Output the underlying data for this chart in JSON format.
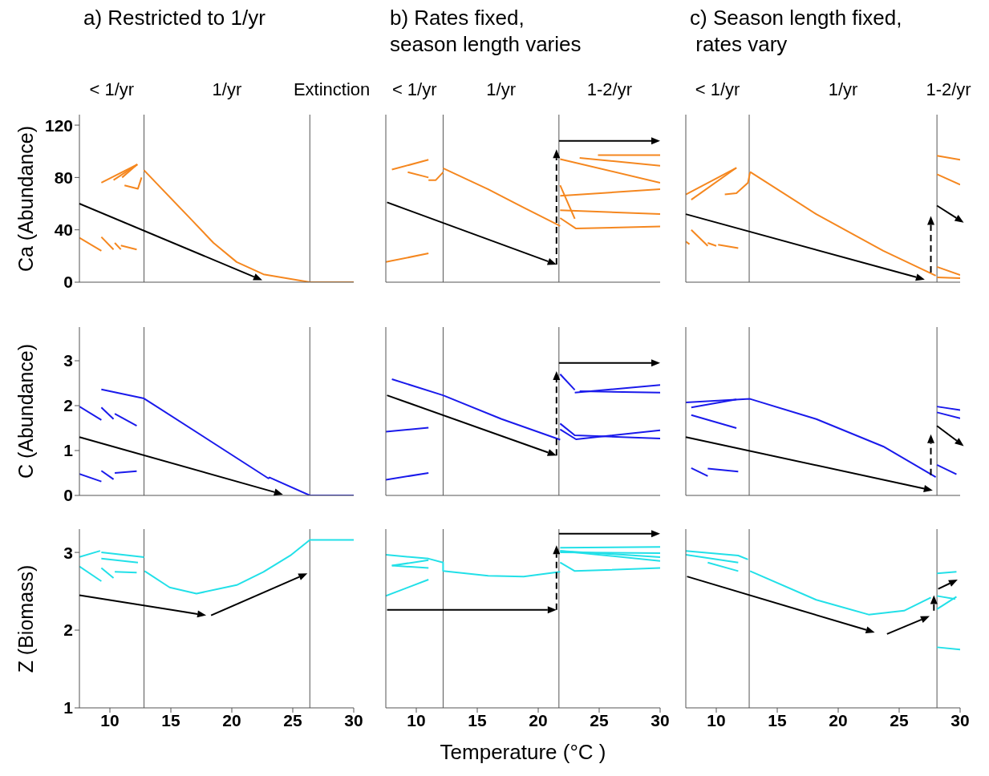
{
  "chart_data": [
    {
      "type": "line",
      "title": "a) Restricted to 1/yr",
      "ylabel": "Ca (Abundance)",
      "xlim": [
        7.5,
        30
      ],
      "xticks": [
        10,
        15,
        20,
        25,
        30
      ],
      "ylim": [
        0,
        128
      ],
      "yticks": [
        0,
        40,
        80,
        120
      ],
      "tick_labels": "y",
      "annotations": [
        "< 1/yr",
        "1/yr",
        "Extinction"
      ],
      "ref_lines": [
        {
          "axis": "x",
          "value": 12.8
        },
        {
          "axis": "x",
          "value": 26.4
        }
      ],
      "series": [
        {
          "color": "#f5871f",
          "x": [
            12.8,
            16.6,
            18.5,
            20.4,
            22.6,
            26.4,
            30
          ],
          "values": [
            85.5,
            48.6,
            30,
            15.4,
            6,
            0,
            0
          ]
        },
        {
          "color": "#f5871f",
          "x": [
            9.3,
            12.25
          ],
          "values": [
            76,
            90
          ]
        },
        {
          "color": "#f5871f",
          "x": [
            10.3,
            12.25
          ],
          "values": [
            78,
            90
          ]
        },
        {
          "color": "#f5871f",
          "x": [
            11.0,
            12.25
          ],
          "values": [
            80,
            90
          ]
        },
        {
          "color": "#f5871f",
          "x": [
            11.2,
            12.3,
            12.6
          ],
          "values": [
            74,
            71.4,
            80
          ]
        },
        {
          "color": "#f5871f",
          "x": [
            7.5,
            9.3
          ],
          "values": [
            34,
            24
          ]
        },
        {
          "color": "#f5871f",
          "x": [
            9.3,
            10.3
          ],
          "values": [
            34.5,
            25
          ]
        },
        {
          "color": "#f5871f",
          "x": [
            10.4,
            10.9
          ],
          "values": [
            30,
            25
          ]
        },
        {
          "color": "#f5871f",
          "x": [
            10.9,
            12.2
          ],
          "values": [
            28,
            25
          ]
        }
      ]
    },
    {
      "type": "line",
      "title": "b) Rates fixed,\nseason length varies",
      "xlim": [
        7.5,
        30
      ],
      "xticks": [
        10,
        15,
        20,
        25,
        30
      ],
      "ylim": [
        0,
        128
      ],
      "yticks": [
        0,
        40,
        80,
        120
      ],
      "tick_labels": false,
      "annotations": [
        "< 1/yr",
        "1/yr",
        "1-2/yr"
      ],
      "ref_lines": [
        {
          "axis": "x",
          "value": 12.2
        },
        {
          "axis": "x",
          "value": 21.7
        }
      ],
      "series": [
        {
          "color": "#f5871f",
          "x": [
            12.2,
            15.9,
            18.8,
            21.8
          ],
          "values": [
            87,
            71,
            57,
            43
          ]
        },
        {
          "color": "#f5871f",
          "x": [
            8.0,
            11.0
          ],
          "values": [
            86,
            93.5
          ]
        },
        {
          "color": "#f5871f",
          "x": [
            9.3,
            11.0
          ],
          "values": [
            84,
            80
          ]
        },
        {
          "color": "#f5871f",
          "x": [
            11.0,
            11.6,
            12.2
          ],
          "values": [
            78,
            78,
            84
          ]
        },
        {
          "color": "#f5871f",
          "x": [
            7.5,
            11.0
          ],
          "values": [
            15.4,
            22
          ]
        },
        {
          "color": "#f5871f",
          "x": [
            21.8,
            30
          ],
          "values": [
            94,
            76
          ]
        },
        {
          "color": "#f5871f",
          "x": [
            23.4,
            30
          ],
          "values": [
            95,
            89
          ]
        },
        {
          "color": "#f5871f",
          "x": [
            24.9,
            30
          ],
          "values": [
            97,
            97
          ]
        },
        {
          "color": "#f5871f",
          "x": [
            21.8,
            30
          ],
          "values": [
            66,
            71
          ]
        },
        {
          "color": "#f5871f",
          "x": [
            21.8,
            23.0
          ],
          "values": [
            74,
            48.5
          ]
        },
        {
          "color": "#f5871f",
          "x": [
            21.8,
            30
          ],
          "values": [
            55,
            52
          ]
        },
        {
          "color": "#f5871f",
          "x": [
            21.8,
            23.1,
            30
          ],
          "values": [
            49,
            41,
            42.5
          ]
        }
      ]
    },
    {
      "type": "line",
      "title": "c) Season length fixed,\n rates vary",
      "xlim": [
        7.5,
        30
      ],
      "xticks": [
        10,
        15,
        20,
        25,
        30
      ],
      "ylim": [
        0,
        128
      ],
      "yticks": [
        0,
        40,
        80,
        120
      ],
      "tick_labels": false,
      "annotations": [
        "< 1/yr",
        "1/yr",
        "1-2/yr"
      ],
      "ref_lines": [
        {
          "axis": "x",
          "value": 12.7
        },
        {
          "axis": "x",
          "value": 28.1
        }
      ],
      "series": [
        {
          "color": "#f5871f",
          "x": [
            12.77,
            18.2,
            23.7,
            28.0
          ],
          "values": [
            84.3,
            52,
            24,
            5
          ]
        },
        {
          "color": "#f5871f",
          "x": [
            7.5,
            11.65
          ],
          "values": [
            67,
            87.4
          ]
        },
        {
          "color": "#f5871f",
          "x": [
            7.95,
            11.65
          ],
          "values": [
            63,
            87.4
          ]
        },
        {
          "color": "#f5871f",
          "x": [
            10.7,
            11.65,
            12.6,
            12.77
          ],
          "values": [
            67,
            68,
            76,
            84
          ]
        },
        {
          "color": "#f5871f",
          "x": [
            7.95,
            9.3
          ],
          "values": [
            40,
            27.7
          ]
        },
        {
          "color": "#f5871f",
          "x": [
            9.3,
            10.0
          ],
          "values": [
            30,
            27.7
          ]
        },
        {
          "color": "#f5871f",
          "x": [
            10.15,
            11.8
          ],
          "values": [
            28.6,
            26
          ]
        },
        {
          "color": "#f5871f",
          "x": [
            7.5,
            7.8
          ],
          "values": [
            31,
            29
          ]
        },
        {
          "color": "#f5871f",
          "x": [
            28.1,
            30
          ],
          "values": [
            96.6,
            93.5
          ]
        },
        {
          "color": "#f5871f",
          "x": [
            28.1,
            30
          ],
          "values": [
            82.5,
            74.5
          ]
        },
        {
          "color": "#f5871f",
          "x": [
            28.1,
            30
          ],
          "values": [
            11.7,
            5.5
          ]
        },
        {
          "color": "#f5871f",
          "x": [
            28.1,
            30
          ],
          "values": [
            3.7,
            3.1
          ]
        }
      ]
    },
    {
      "type": "line",
      "ylabel": "C (Abundance)",
      "xlim": [
        7.5,
        30
      ],
      "xticks": [
        10,
        15,
        20,
        25,
        30
      ],
      "ylim": [
        0,
        3.75
      ],
      "yticks": [
        0,
        1,
        2,
        3
      ],
      "tick_labels": "y",
      "ref_lines": [
        {
          "axis": "x",
          "value": 12.8
        },
        {
          "axis": "x",
          "value": 26.4
        }
      ],
      "series": [
        {
          "color": "#1a1aeb",
          "x": [
            9.3,
            12.8,
            23.0,
            23.1,
            26.4,
            30
          ],
          "values": [
            2.36,
            2.16,
            0.38,
            0.4,
            0,
            0
          ]
        },
        {
          "color": "#1a1aeb",
          "x": [
            7.5,
            9.3
          ],
          "values": [
            1.98,
            1.68
          ]
        },
        {
          "color": "#1a1aeb",
          "x": [
            9.3,
            10.3
          ],
          "values": [
            1.96,
            1.7
          ]
        },
        {
          "color": "#1a1aeb",
          "x": [
            10.4,
            12.2
          ],
          "values": [
            1.82,
            1.55
          ]
        },
        {
          "color": "#1a1aeb",
          "x": [
            7.5,
            9.3
          ],
          "values": [
            0.48,
            0.31
          ]
        },
        {
          "color": "#1a1aeb",
          "x": [
            9.3,
            10.3
          ],
          "values": [
            0.55,
            0.36
          ]
        },
        {
          "color": "#1a1aeb",
          "x": [
            10.4,
            12.2
          ],
          "values": [
            0.5,
            0.54
          ]
        }
      ]
    },
    {
      "type": "line",
      "xlim": [
        7.5,
        30
      ],
      "xticks": [
        10,
        15,
        20,
        25,
        30
      ],
      "ylim": [
        0,
        3.75
      ],
      "yticks": [
        0,
        1,
        2,
        3
      ],
      "tick_labels": false,
      "ref_lines": [
        {
          "axis": "x",
          "value": 12.2
        },
        {
          "axis": "x",
          "value": 21.7
        }
      ],
      "series": [
        {
          "color": "#1a1aeb",
          "x": [
            8.0,
            12.2,
            17.0,
            21.8
          ],
          "values": [
            2.59,
            2.23,
            1.7,
            1.24
          ]
        },
        {
          "color": "#1a1aeb",
          "x": [
            7.5,
            11.0
          ],
          "values": [
            1.42,
            1.51
          ]
        },
        {
          "color": "#1a1aeb",
          "x": [
            7.5,
            11.0
          ],
          "values": [
            0.35,
            0.5
          ]
        },
        {
          "color": "#1a1aeb",
          "x": [
            21.8,
            23.0
          ],
          "values": [
            2.7,
            2.35
          ]
        },
        {
          "color": "#1a1aeb",
          "x": [
            23.0,
            30
          ],
          "values": [
            2.29,
            2.46
          ]
        },
        {
          "color": "#1a1aeb",
          "x": [
            23.4,
            30
          ],
          "values": [
            2.32,
            2.29
          ]
        },
        {
          "color": "#1a1aeb",
          "x": [
            21.8,
            23.0,
            30
          ],
          "values": [
            1.6,
            1.34,
            1.27
          ]
        },
        {
          "color": "#1a1aeb",
          "x": [
            21.8,
            23.1,
            30
          ],
          "values": [
            1.47,
            1.25,
            1.45
          ]
        }
      ]
    },
    {
      "type": "line",
      "xlim": [
        7.5,
        30
      ],
      "xticks": [
        10,
        15,
        20,
        25,
        30
      ],
      "ylim": [
        0,
        3.75
      ],
      "yticks": [
        0,
        1,
        2,
        3
      ],
      "tick_labels": false,
      "ref_lines": [
        {
          "axis": "x",
          "value": 12.7
        },
        {
          "axis": "x",
          "value": 28.1
        }
      ],
      "series": [
        {
          "color": "#1a1aeb",
          "x": [
            7.5,
            12.77,
            18.2,
            23.7,
            28.0
          ],
          "values": [
            2.07,
            2.15,
            1.7,
            1.09,
            0.41
          ]
        },
        {
          "color": "#1a1aeb",
          "x": [
            7.95,
            11.65
          ],
          "values": [
            1.96,
            2.14
          ]
        },
        {
          "color": "#1a1aeb",
          "x": [
            7.95,
            11.65
          ],
          "values": [
            1.79,
            1.5
          ]
        },
        {
          "color": "#1a1aeb",
          "x": [
            7.95,
            9.3
          ],
          "values": [
            0.61,
            0.43
          ]
        },
        {
          "color": "#1a1aeb",
          "x": [
            9.3,
            11.8
          ],
          "values": [
            0.6,
            0.53
          ]
        },
        {
          "color": "#1a1aeb",
          "x": [
            28.1,
            30
          ],
          "values": [
            1.98,
            1.9
          ]
        },
        {
          "color": "#1a1aeb",
          "x": [
            28.1,
            30
          ],
          "values": [
            1.85,
            1.72
          ]
        },
        {
          "color": "#1a1aeb",
          "x": [
            28.1,
            29.7
          ],
          "values": [
            0.68,
            0.47
          ]
        }
      ]
    },
    {
      "type": "line",
      "ylabel": "Z (Biomass)",
      "xlim": [
        7.5,
        30
      ],
      "xticks": [
        10,
        15,
        20,
        25,
        30
      ],
      "ylim": [
        1,
        3.3
      ],
      "yticks": [
        1,
        2,
        3
      ],
      "ref_lines": [
        {
          "axis": "x",
          "value": 12.8
        },
        {
          "axis": "x",
          "value": 26.4
        }
      ],
      "series": [
        {
          "color": "#22e0e8",
          "x": [
            12.85,
            14.9,
            17.1,
            20.4,
            22.6,
            24.8,
            26.4,
            30
          ],
          "values": [
            2.76,
            2.55,
            2.47,
            2.58,
            2.75,
            2.96,
            3.16,
            3.16
          ]
        },
        {
          "color": "#22e0e8",
          "x": [
            7.5,
            9.2
          ],
          "values": [
            2.94,
            3.02
          ]
        },
        {
          "color": "#22e0e8",
          "x": [
            9.3,
            12.8
          ],
          "values": [
            3.0,
            2.94
          ]
        },
        {
          "color": "#22e0e8",
          "x": [
            9.3,
            12.3
          ],
          "values": [
            2.92,
            2.87
          ]
        },
        {
          "color": "#22e0e8",
          "x": [
            7.5,
            9.3
          ],
          "values": [
            2.82,
            2.63
          ]
        },
        {
          "color": "#22e0e8",
          "x": [
            9.3,
            10.3
          ],
          "values": [
            2.8,
            2.67
          ]
        },
        {
          "color": "#22e0e8",
          "x": [
            10.4,
            12.2
          ],
          "values": [
            2.75,
            2.74
          ]
        }
      ]
    },
    {
      "type": "line",
      "xlabel": "Temperature (°C )",
      "xlim": [
        7.5,
        30
      ],
      "xticks": [
        10,
        15,
        20,
        25,
        30
      ],
      "ylim": [
        1,
        3.3
      ],
      "yticks": [
        1,
        2,
        3
      ],
      "tick_labels": "x",
      "ref_lines": [
        {
          "axis": "x",
          "value": 12.2
        },
        {
          "axis": "x",
          "value": 21.7
        }
      ],
      "series": [
        {
          "color": "#22e0e8",
          "x": [
            7.5,
            11.0,
            12.2,
            12.2,
            15.9,
            18.8,
            21.8
          ],
          "values": [
            2.97,
            2.92,
            2.87,
            2.76,
            2.7,
            2.69,
            2.75
          ]
        },
        {
          "color": "#22e0e8",
          "x": [
            8.0,
            11.0
          ],
          "values": [
            2.83,
            2.9
          ]
        },
        {
          "color": "#22e0e8",
          "x": [
            8.0,
            11.0
          ],
          "values": [
            2.83,
            2.8
          ]
        },
        {
          "color": "#22e0e8",
          "x": [
            7.5,
            11.0
          ],
          "values": [
            2.44,
            2.65
          ]
        },
        {
          "color": "#22e0e8",
          "x": [
            21.8,
            30
          ],
          "values": [
            3.06,
            3.07
          ]
        },
        {
          "color": "#22e0e8",
          "x": [
            21.8,
            30
          ],
          "values": [
            3.02,
            2.94
          ]
        },
        {
          "color": "#22e0e8",
          "x": [
            21.8,
            30
          ],
          "values": [
            3.02,
            2.89
          ]
        },
        {
          "color": "#22e0e8",
          "x": [
            21.8,
            30
          ],
          "values": [
            3.0,
            2.99
          ]
        },
        {
          "color": "#22e0e8",
          "x": [
            21.8,
            23.0,
            30
          ],
          "values": [
            2.87,
            2.76,
            2.8
          ]
        }
      ]
    },
    {
      "type": "line",
      "xlim": [
        7.5,
        30
      ],
      "xticks": [
        10,
        15,
        20,
        25,
        30
      ],
      "ylim": [
        1,
        3.3
      ],
      "yticks": [
        1,
        2,
        3
      ],
      "tick_labels": "x",
      "ref_lines": [
        {
          "axis": "x",
          "value": 12.7
        },
        {
          "axis": "x",
          "value": 28.1
        }
      ],
      "series": [
        {
          "color": "#22e0e8",
          "x": [
            12.77,
            18.2,
            22.5,
            25.4,
            27.6
          ],
          "values": [
            2.76,
            2.39,
            2.2,
            2.25,
            2.42
          ]
        },
        {
          "color": "#22e0e8",
          "x": [
            7.5,
            11.8,
            12.6
          ],
          "values": [
            3.02,
            2.96,
            2.91
          ]
        },
        {
          "color": "#22e0e8",
          "x": [
            7.5,
            11.8
          ],
          "values": [
            2.97,
            2.87
          ]
        },
        {
          "color": "#22e0e8",
          "x": [
            9.3,
            11.8
          ],
          "values": [
            2.87,
            2.76
          ]
        },
        {
          "color": "#22e0e8",
          "x": [
            28.1,
            29.7
          ],
          "values": [
            2.73,
            2.75
          ]
        },
        {
          "color": "#22e0e8",
          "x": [
            28.1,
            29.6
          ],
          "values": [
            2.44,
            2.4
          ]
        },
        {
          "color": "#22e0e8",
          "x": [
            28.1,
            29.7
          ],
          "values": [
            2.27,
            2.43
          ]
        },
        {
          "color": "#22e0e8",
          "x": [
            28.1,
            30
          ],
          "values": [
            1.78,
            1.75
          ]
        }
      ]
    }
  ]
}
